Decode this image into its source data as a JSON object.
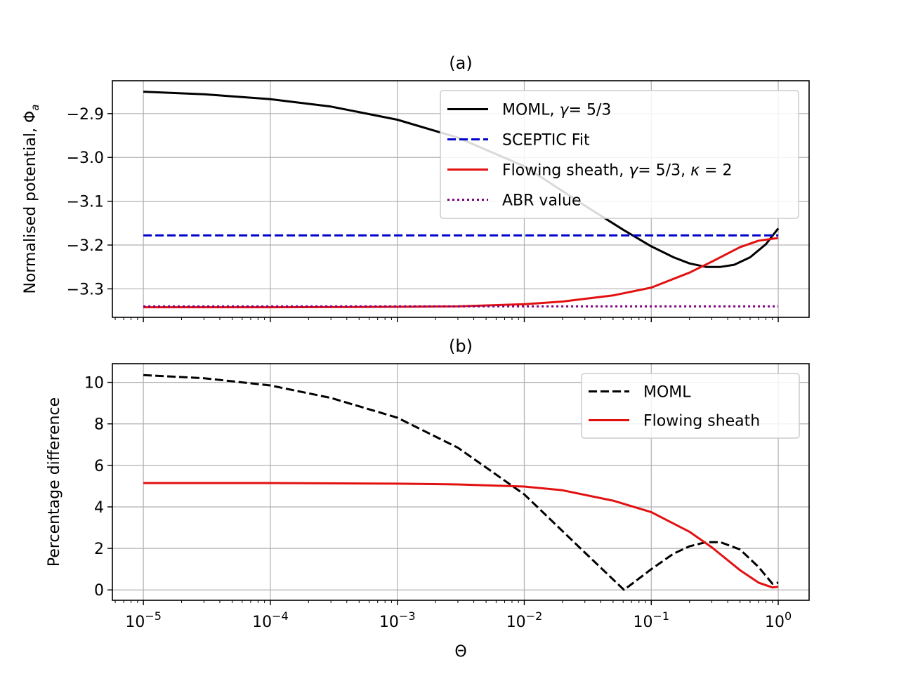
{
  "chart_data": [
    {
      "id": "a",
      "type": "line",
      "title": "(a)",
      "xlabel": "",
      "ylabel": "Normalised potential, Φa",
      "xscale": "log",
      "xlim": [
        5.7e-06,
        1.75
      ],
      "ylim": [
        -3.365,
        -2.825
      ],
      "yticks": [
        -3.3,
        -3.2,
        -3.1,
        -3.0,
        -2.9
      ],
      "ytick_labels": [
        "−3.3",
        "−3.2",
        "−3.1",
        "−3.0",
        "−2.9"
      ],
      "show_xtick_labels": false,
      "grid": true,
      "legend_position": "top-right",
      "series": [
        {
          "name": "MOML, γ= 5/3",
          "color": "#000000",
          "dash": "solid",
          "x": [
            1e-05,
            3e-05,
            0.0001,
            0.0003,
            0.001,
            0.003,
            0.01,
            0.03,
            0.06,
            0.1,
            0.15,
            0.2,
            0.27,
            0.35,
            0.45,
            0.6,
            0.8,
            1.0
          ],
          "y": [
            -2.85,
            -2.856,
            -2.867,
            -2.884,
            -2.914,
            -2.955,
            -3.02,
            -3.11,
            -3.165,
            -3.203,
            -3.228,
            -3.242,
            -3.25,
            -3.25,
            -3.245,
            -3.228,
            -3.198,
            -3.162
          ]
        },
        {
          "name": "SCEPTIC Fit",
          "color": "#0000cc",
          "dash": "dashed",
          "x": [
            1e-05,
            1.0
          ],
          "y": [
            -3.178,
            -3.178
          ]
        },
        {
          "name": "Flowing sheath, γ= 5/3, κ = 2",
          "color": "#e31010",
          "dash": "solid",
          "x": [
            1e-05,
            0.0001,
            0.001,
            0.003,
            0.01,
            0.02,
            0.05,
            0.1,
            0.2,
            0.3,
            0.5,
            0.7,
            1.0
          ],
          "y": [
            -3.342,
            -3.342,
            -3.341,
            -3.34,
            -3.335,
            -3.329,
            -3.315,
            -3.297,
            -3.263,
            -3.238,
            -3.205,
            -3.19,
            -3.184
          ]
        },
        {
          "name": "ABR value",
          "color": "#800080",
          "dash": "dotted",
          "x": [
            1e-05,
            1.0
          ],
          "y": [
            -3.34,
            -3.34
          ]
        }
      ]
    },
    {
      "id": "b",
      "type": "line",
      "title": "(b)",
      "xlabel": "Θ",
      "ylabel": "Percentage difference",
      "xscale": "log",
      "xlim": [
        5.7e-06,
        1.75
      ],
      "ylim": [
        -0.5,
        10.9
      ],
      "xticks": [
        1e-05,
        0.0001,
        0.001,
        0.01,
        0.1,
        1
      ],
      "xtick_labels": [
        {
          "base": "10",
          "exp": "−5"
        },
        {
          "base": "10",
          "exp": "−4"
        },
        {
          "base": "10",
          "exp": "−3"
        },
        {
          "base": "10",
          "exp": "−2"
        },
        {
          "base": "10",
          "exp": "−1"
        },
        {
          "base": "10",
          "exp": "0"
        }
      ],
      "yticks": [
        0,
        2,
        4,
        6,
        8,
        10
      ],
      "ytick_labels": [
        "0",
        "2",
        "4",
        "6",
        "8",
        "10"
      ],
      "grid": true,
      "legend_position": "top-right",
      "series": [
        {
          "name": "MOML",
          "color": "#000000",
          "dash": "dashed",
          "x": [
            1e-05,
            3e-05,
            0.0001,
            0.0003,
            0.001,
            0.003,
            0.01,
            0.03,
            0.061,
            0.1,
            0.15,
            0.2,
            0.27,
            0.35,
            0.5,
            0.7,
            0.9,
            1.0
          ],
          "y": [
            10.35,
            10.2,
            9.85,
            9.25,
            8.3,
            6.85,
            4.6,
            1.8,
            0.0,
            1.0,
            1.75,
            2.1,
            2.3,
            2.3,
            1.95,
            1.1,
            0.3,
            0.35
          ]
        },
        {
          "name": "Flowing sheath",
          "color": "#e31010",
          "dash": "solid",
          "x": [
            1e-05,
            0.0001,
            0.001,
            0.003,
            0.01,
            0.02,
            0.05,
            0.1,
            0.2,
            0.3,
            0.5,
            0.7,
            0.9,
            1.0
          ],
          "y": [
            5.15,
            5.15,
            5.12,
            5.08,
            4.98,
            4.8,
            4.3,
            3.75,
            2.8,
            2.05,
            0.95,
            0.35,
            0.12,
            0.15
          ]
        }
      ]
    }
  ]
}
